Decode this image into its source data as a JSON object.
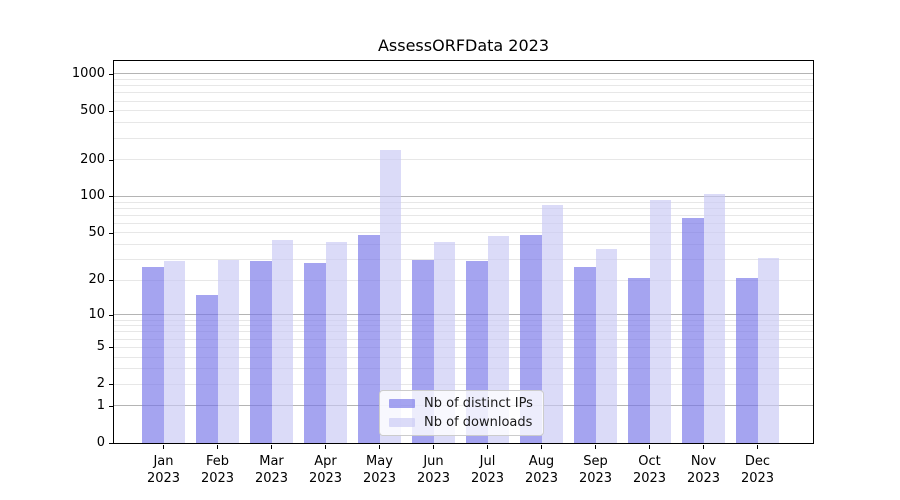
{
  "chart_data": {
    "type": "bar",
    "title": "AssessORFData 2023",
    "y_scale": "logarithmic-like, position proportional to log10(value+1), baseline at 0",
    "categories": [
      "Jan 2023",
      "Feb 2023",
      "Mar 2023",
      "Apr 2023",
      "May 2023",
      "Jun 2023",
      "Jul 2023",
      "Aug 2023",
      "Sep 2023",
      "Oct 2023",
      "Nov 2023",
      "Dec 2023"
    ],
    "x_tick_labels": [
      {
        "line1": "Jan",
        "line2": "2023"
      },
      {
        "line1": "Feb",
        "line2": "2023"
      },
      {
        "line1": "Mar",
        "line2": "2023"
      },
      {
        "line1": "Apr",
        "line2": "2023"
      },
      {
        "line1": "May",
        "line2": "2023"
      },
      {
        "line1": "Jun",
        "line2": "2023"
      },
      {
        "line1": "Jul",
        "line2": "2023"
      },
      {
        "line1": "Aug",
        "line2": "2023"
      },
      {
        "line1": "Sep",
        "line2": "2023"
      },
      {
        "line1": "Oct",
        "line2": "2023"
      },
      {
        "line1": "Nov",
        "line2": "2023"
      },
      {
        "line1": "Dec",
        "line2": "2023"
      }
    ],
    "series": [
      {
        "name": "Nb of distinct IPs",
        "color": "#7573E8",
        "fill_opacity": 0.65,
        "values": [
          26,
          15,
          29,
          28,
          48,
          30,
          29,
          48,
          26,
          21,
          67,
          21
        ]
      },
      {
        "name": "Nb of downloads",
        "color": "#C8C8F4",
        "fill_opacity": 0.65,
        "values": [
          29,
          30,
          44,
          42,
          240,
          42,
          47,
          85,
          37,
          93,
          104,
          31
        ]
      }
    ],
    "y_axis": {
      "ticks": [
        0,
        1,
        2,
        5,
        10,
        20,
        50,
        100,
        200,
        500,
        1000
      ],
      "major_gridlines": [
        1,
        10,
        100,
        1000
      ],
      "minor_gridlines": [
        2,
        3,
        4,
        5,
        6,
        7,
        8,
        9,
        20,
        30,
        40,
        50,
        60,
        70,
        80,
        90,
        200,
        300,
        400,
        500,
        600,
        700,
        800,
        900
      ],
      "range": [
        0,
        1280
      ]
    },
    "legend": {
      "position": "lower center, inside plot",
      "entries": [
        "Nb of distinct IPs",
        "Nb of downloads"
      ]
    },
    "grid": true,
    "colors": {
      "axis": "#000000",
      "major_grid": "#b4b4b4",
      "minor_grid": "#e7e7e7",
      "background": "#ffffff"
    }
  }
}
